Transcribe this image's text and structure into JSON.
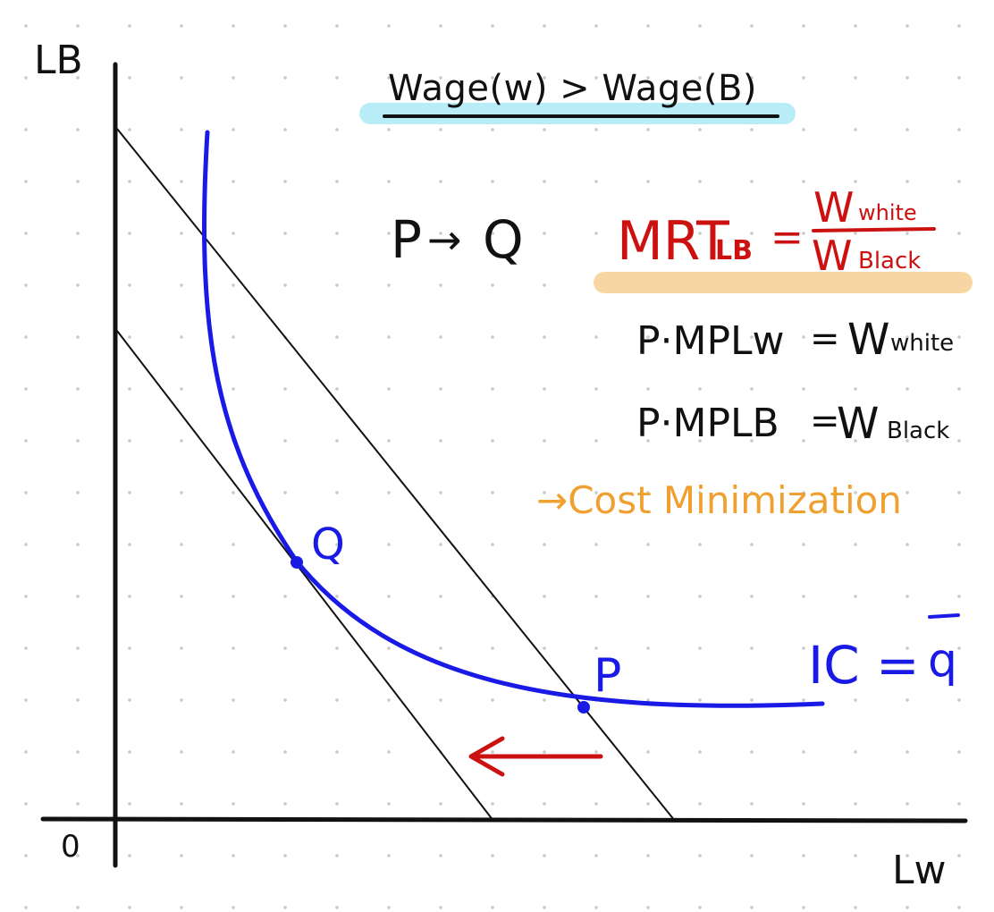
{
  "axes": {
    "y_label": "LB",
    "x_label": "Lw",
    "origin_label": "0"
  },
  "title": "Wage(w) > Wage(B)",
  "movement": {
    "from": "P",
    "arrow": "→",
    "to": "Q"
  },
  "mrt": {
    "lhs": "MRT",
    "lhs_sub": "LB",
    "eq": "=",
    "numerator_main": "W",
    "numerator_sub": "white",
    "denominator_main": "W",
    "denominator_sub": "Black"
  },
  "conditions": [
    {
      "lhs": "P·MPLw",
      "eq": "=",
      "rhs_main": "W",
      "rhs_sub": "white"
    },
    {
      "lhs": "P·MPLB",
      "eq": "=",
      "rhs_main": "W",
      "rhs_sub": "Black"
    }
  ],
  "conclusion": "→Cost Minimization",
  "points": {
    "q_label": "Q",
    "p_label": "P"
  },
  "curve_label": {
    "prefix": "IC =",
    "symbol": "q",
    "bar": "‾"
  },
  "colors": {
    "ink": "#111111",
    "curve": "#1a1ae6",
    "arrow": "#cc1111",
    "mrt_text": "#cc1111",
    "conclusion": "#f0a030",
    "title_highlight": "#b8ecf7",
    "mrt_highlight": "#f8d6a4",
    "grid_dot": "#c9c9c9"
  }
}
